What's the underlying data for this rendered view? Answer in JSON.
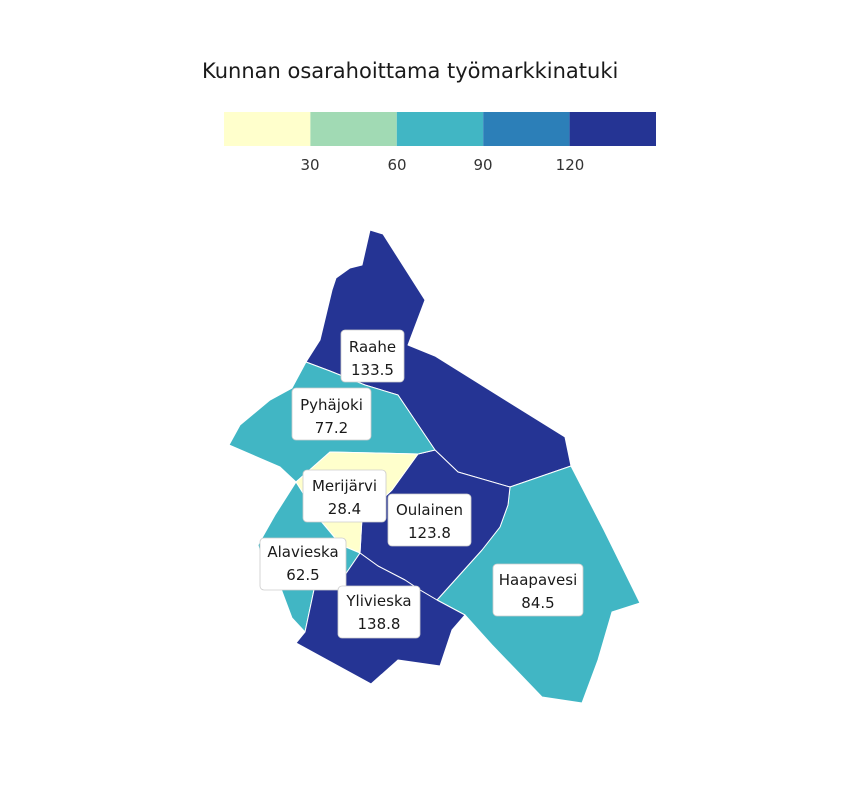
{
  "title": "Kunnan osarahoittama työmarkkinatuki",
  "legend": {
    "colors": [
      "#ffffcc",
      "#a1dab4",
      "#41b6c4",
      "#2c7fb8",
      "#253494"
    ],
    "breaks": [
      "30",
      "60",
      "90",
      "120"
    ]
  },
  "municipalities": [
    {
      "name": "Raahe",
      "value": "133.5",
      "color": "#253494"
    },
    {
      "name": "Pyhäjoki",
      "value": "77.2",
      "color": "#41b6c4"
    },
    {
      "name": "Merijärvi",
      "value": "28.4",
      "color": "#ffffcc"
    },
    {
      "name": "Oulainen",
      "value": "123.8",
      "color": "#253494"
    },
    {
      "name": "Alavieska",
      "value": "62.5",
      "color": "#41b6c4"
    },
    {
      "name": "Ylivieska",
      "value": "138.8",
      "color": "#253494"
    },
    {
      "name": "Haapavesi",
      "value": "84.5",
      "color": "#41b6c4"
    }
  ]
}
